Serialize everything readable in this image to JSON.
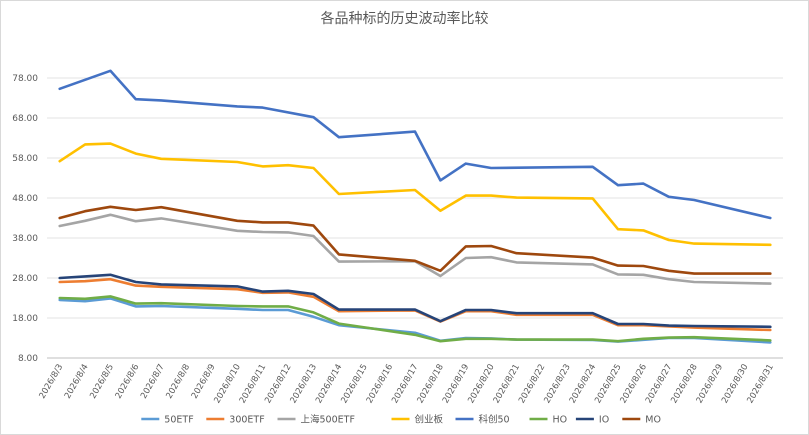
{
  "chart_data": {
    "type": "line",
    "title": "各品种标的历史波动率比较",
    "xlabel": "",
    "ylabel": "",
    "ylim": [
      8,
      80
    ],
    "yticks": [
      8,
      18,
      28,
      38,
      48,
      58,
      68,
      78
    ],
    "ytick_labels": [
      "8.00",
      "18.00",
      "28.00",
      "38.00",
      "48.00",
      "58.00",
      "68.00",
      "78.00"
    ],
    "grid": true,
    "legend_position": "bottom",
    "x": [
      "2026/8/3",
      "2026/8/4",
      "2026/8/5",
      "2026/8/6",
      "2026/8/7",
      "2026/8/8",
      "2026/8/9",
      "2026/8/10",
      "2026/8/11",
      "2026/8/12",
      "2026/8/13",
      "2026/8/14",
      "2026/8/15",
      "2026/8/16",
      "2026/8/17",
      "2026/8/18",
      "2026/8/19",
      "2026/8/20",
      "2026/8/21",
      "2026/8/22",
      "2026/8/23",
      "2026/8/24",
      "2026/8/25",
      "2026/8/26",
      "2026/8/27",
      "2026/8/28",
      "2026/8/29",
      "2026/8/30",
      "2026/8/31"
    ],
    "series": [
      {
        "name": "50ETF",
        "color": "#5b9bd5",
        "values": [
          22.5,
          22.2,
          22.9,
          20.9,
          21.0,
          null,
          null,
          20.3,
          20.0,
          20.0,
          18.3,
          16.2,
          null,
          null,
          14.3,
          12.3,
          13.0,
          12.9,
          12.6,
          null,
          null,
          12.5,
          12.1,
          null,
          13.0,
          13.0,
          null,
          null,
          11.9
        ]
      },
      {
        "name": "300ETF",
        "color": "#ed7d31",
        "values": [
          27.0,
          27.2,
          27.7,
          26.1,
          25.8,
          null,
          null,
          25.2,
          24.3,
          24.4,
          23.3,
          19.7,
          null,
          null,
          19.9,
          17.1,
          19.7,
          19.7,
          18.8,
          null,
          null,
          18.8,
          16.2,
          16.2,
          null,
          15.6,
          null,
          null,
          15.0
        ]
      },
      {
        "name": "上海500ETF",
        "color": "#a5a5a5",
        "values": [
          41.0,
          42.3,
          43.8,
          42.2,
          42.9,
          null,
          null,
          39.8,
          39.5,
          39.4,
          38.5,
          32.1,
          null,
          null,
          32.2,
          28.5,
          33.0,
          33.2,
          31.9,
          null,
          null,
          31.4,
          28.9,
          28.8,
          27.7,
          27.0,
          null,
          null,
          26.6
        ]
      },
      {
        "name": "创业板",
        "color": "#ffc000",
        "values": [
          57.2,
          61.4,
          61.6,
          59.1,
          57.8,
          null,
          null,
          57.0,
          55.9,
          56.2,
          55.5,
          49.0,
          null,
          null,
          50.0,
          44.8,
          48.6,
          48.6,
          48.1,
          null,
          null,
          47.9,
          40.2,
          39.9,
          37.5,
          36.6,
          null,
          null,
          36.3
        ]
      },
      {
        "name": "科创50",
        "color": "#4472c4",
        "values": [
          75.3,
          null,
          79.8,
          72.7,
          72.4,
          null,
          null,
          70.9,
          70.6,
          null,
          68.2,
          63.2,
          null,
          null,
          64.6,
          52.4,
          56.6,
          55.5,
          null,
          null,
          null,
          55.8,
          51.2,
          51.6,
          48.3,
          47.5,
          null,
          null,
          43.0
        ]
      },
      {
        "name": "HO",
        "color": "#70ad47",
        "values": [
          23.0,
          22.8,
          23.4,
          21.6,
          21.7,
          null,
          null,
          21.0,
          20.9,
          20.9,
          19.4,
          16.6,
          null,
          null,
          13.8,
          12.2,
          12.8,
          12.8,
          12.6,
          null,
          null,
          12.6,
          12.2,
          12.8,
          13.1,
          13.2,
          null,
          null,
          12.4
        ]
      },
      {
        "name": "IO",
        "color": "#264478",
        "values": [
          28.0,
          28.4,
          28.8,
          27.0,
          26.4,
          null,
          null,
          25.9,
          24.6,
          24.8,
          24.0,
          20.1,
          null,
          null,
          20.1,
          17.2,
          20.0,
          20.0,
          19.2,
          null,
          null,
          19.2,
          16.5,
          16.5,
          16.1,
          16.0,
          null,
          null,
          15.8
        ]
      },
      {
        "name": "MO",
        "color": "#9e480e",
        "values": [
          43.0,
          44.7,
          45.8,
          45.0,
          45.7,
          null,
          null,
          42.3,
          41.9,
          41.9,
          41.1,
          33.9,
          null,
          null,
          32.3,
          29.8,
          35.9,
          36.0,
          34.2,
          null,
          null,
          33.1,
          31.1,
          31.0,
          29.8,
          29.1,
          null,
          null,
          29.1
        ]
      }
    ]
  }
}
